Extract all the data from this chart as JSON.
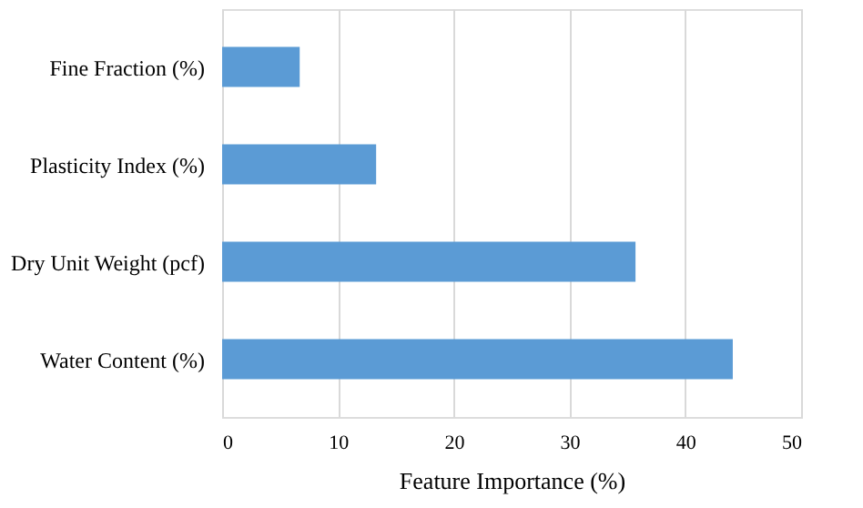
{
  "chart_data": {
    "type": "bar",
    "orientation": "horizontal",
    "xlabel": "Feature Importance (%)",
    "categories": [
      "Fine Fraction (%)",
      "Plasticity Index (%)",
      "Dry Unit Weight (pcf)",
      "Water Content (%)"
    ],
    "values": [
      6.7,
      13.3,
      35.7,
      44.1
    ],
    "color": "#5b9bd5",
    "xlim": [
      0,
      50
    ],
    "xticks": [
      0,
      10,
      20,
      30,
      40,
      50
    ],
    "grid": "x"
  }
}
